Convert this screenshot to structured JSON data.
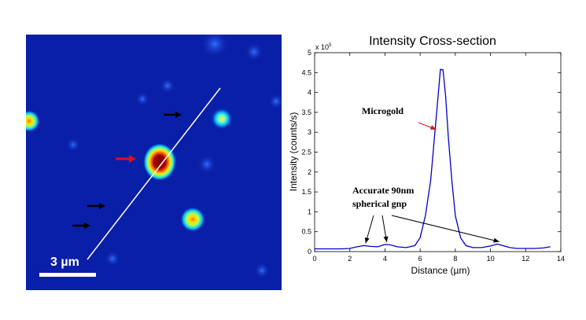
{
  "micrograph": {
    "scale_bar_label": "3 µm",
    "colors": {
      "background": "#0a1fa8",
      "particle_hot": "#7a0000",
      "line": "#ffffff",
      "marker_arrow": "#000000",
      "highlight_arrow": "#e01010"
    }
  },
  "chart_data": {
    "type": "line",
    "title": "Intensity Cross-section",
    "xlabel": "Distance (µm)",
    "ylabel": "Intensity (counts/s)",
    "y_multiplier": "x 10",
    "y_multiplier_exp": "5",
    "xlim": [
      0,
      14
    ],
    "ylim": [
      0,
      5
    ],
    "xticks": [
      0,
      2,
      4,
      6,
      8,
      10,
      12,
      14
    ],
    "yticks": [
      0,
      0.5,
      1,
      1.5,
      2,
      2.5,
      3,
      3.5,
      4,
      4.5,
      5
    ],
    "grid": false,
    "line_color": "#0000cc",
    "series": [
      {
        "x": [
          0,
          0.5,
          1,
          1.5,
          2,
          2.4,
          2.8,
          3.2,
          3.6,
          4.0,
          4.3,
          4.7,
          5.2,
          5.7,
          6.0,
          6.3,
          6.6,
          6.8,
          7.0,
          7.15,
          7.3,
          7.45,
          7.6,
          7.8,
          8.0,
          8.3,
          8.6,
          9.0,
          9.5,
          10.0,
          10.4,
          10.7,
          11.1,
          11.5,
          12.0,
          12.5,
          13.0,
          13.4
        ],
        "y": [
          0.07,
          0.07,
          0.07,
          0.07,
          0.08,
          0.12,
          0.15,
          0.13,
          0.12,
          0.18,
          0.17,
          0.12,
          0.1,
          0.15,
          0.35,
          0.9,
          1.8,
          2.8,
          3.8,
          4.58,
          4.57,
          3.9,
          2.9,
          1.8,
          0.9,
          0.35,
          0.15,
          0.1,
          0.1,
          0.14,
          0.19,
          0.15,
          0.1,
          0.08,
          0.08,
          0.08,
          0.09,
          0.12
        ]
      }
    ],
    "annotations": [
      {
        "text": "Microgold",
        "arrow_color": "#e01010",
        "target": [
          7.0,
          3.15
        ]
      },
      {
        "text_lines": [
          "Accurate 90nm",
          "spherical gnp"
        ],
        "arrow_color": "#000000",
        "targets": [
          [
            2.9,
            0.15
          ],
          [
            4.1,
            0.18
          ],
          [
            10.5,
            0.19
          ]
        ]
      }
    ]
  }
}
